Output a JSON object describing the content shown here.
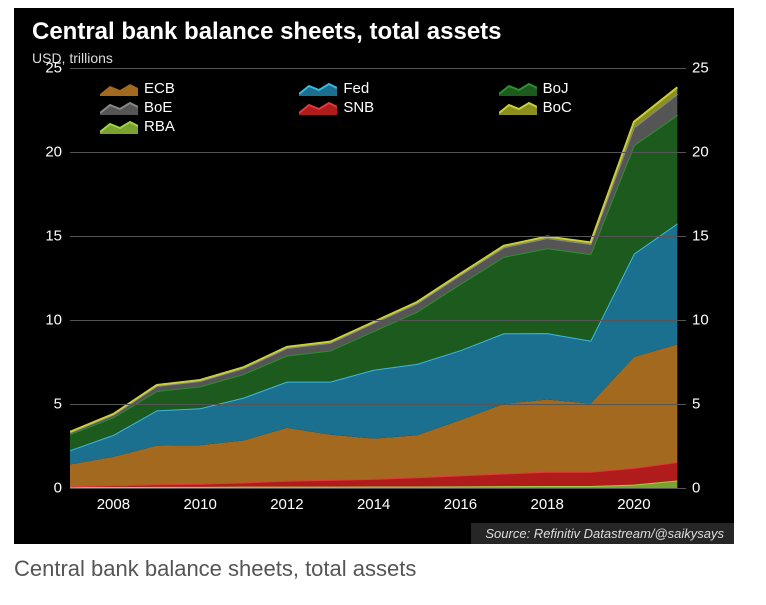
{
  "chart": {
    "type": "area-stacked",
    "title": "Central bank balance sheets, total assets",
    "subtitle": "USD, trillions",
    "background_color": "#000000",
    "title_color": "#ffffff",
    "title_fontsize": 24,
    "subtitle_fontsize": 14,
    "grid_color": "#555555",
    "axis_label_color": "#ffffff",
    "axis_label_fontsize": 15,
    "xlim": [
      2007,
      2021.2
    ],
    "ylim": [
      0,
      25
    ],
    "ytick_step": 5,
    "yticks": [
      0,
      5,
      10,
      15,
      20,
      25
    ],
    "xticks": [
      2008,
      2010,
      2012,
      2014,
      2016,
      2018,
      2020
    ],
    "legend_fontsize": 15,
    "source": "Source: Refinitiv Datastream/@saikysays",
    "source_bg": "#262626",
    "source_color": "#dddddd",
    "x": [
      2007,
      2008,
      2009,
      2010,
      2011,
      2012,
      2013,
      2014,
      2015,
      2016,
      2017,
      2018,
      2019,
      2020,
      2021
    ],
    "series": [
      {
        "name": "RBA",
        "label": "RBA",
        "fill": "#7aa22e",
        "line": "#9fd246",
        "values": [
          0.05,
          0.06,
          0.07,
          0.07,
          0.08,
          0.08,
          0.08,
          0.09,
          0.09,
          0.1,
          0.11,
          0.12,
          0.12,
          0.2,
          0.45
        ]
      },
      {
        "name": "SNB",
        "label": "SNB",
        "fill": "#b01b1b",
        "line": "#e23a3a",
        "values": [
          0.05,
          0.1,
          0.15,
          0.18,
          0.25,
          0.35,
          0.4,
          0.45,
          0.55,
          0.65,
          0.75,
          0.85,
          0.85,
          1.0,
          1.1
        ]
      },
      {
        "name": "ECB",
        "label": "ECB",
        "fill": "#a3691e",
        "line": "#e8aతైన2e",
        "values": [
          1.3,
          1.7,
          2.3,
          2.3,
          2.5,
          3.15,
          2.7,
          2.4,
          2.5,
          3.3,
          4.15,
          4.3,
          4.05,
          6.6,
          7.0
        ]
      },
      {
        "name": "Fed",
        "label": "Fed",
        "fill": "#1b6f8f",
        "line": "#3fb6e0",
        "values": [
          0.85,
          1.3,
          2.1,
          2.2,
          2.55,
          2.75,
          3.15,
          4.1,
          4.25,
          4.15,
          4.2,
          3.95,
          3.75,
          6.15,
          7.2
        ]
      },
      {
        "name": "BoJ",
        "label": "BoJ",
        "fill": "#1d5a1d",
        "line": "#2e8f2e",
        "values": [
          0.95,
          1.05,
          1.15,
          1.3,
          1.4,
          1.55,
          1.85,
          2.3,
          3.1,
          3.95,
          4.55,
          5.05,
          5.15,
          6.45,
          6.45
        ]
      },
      {
        "name": "BoE",
        "label": "BoE",
        "fill": "#555555",
        "line": "#888888",
        "values": [
          0.1,
          0.15,
          0.3,
          0.32,
          0.35,
          0.45,
          0.46,
          0.48,
          0.5,
          0.53,
          0.56,
          0.6,
          0.6,
          1.05,
          1.25
        ]
      },
      {
        "name": "BoC",
        "label": "BoC",
        "fill": "#8a8f1f",
        "line": "#c8cf3b",
        "values": [
          0.04,
          0.05,
          0.06,
          0.06,
          0.06,
          0.07,
          0.07,
          0.07,
          0.08,
          0.08,
          0.1,
          0.1,
          0.1,
          0.35,
          0.4
        ]
      }
    ],
    "legend_order": [
      "ECB",
      "Fed",
      "BoJ",
      "BoE",
      "SNB",
      "BoC",
      "RBA"
    ]
  },
  "caption": "Central bank balance sheets, total assets"
}
